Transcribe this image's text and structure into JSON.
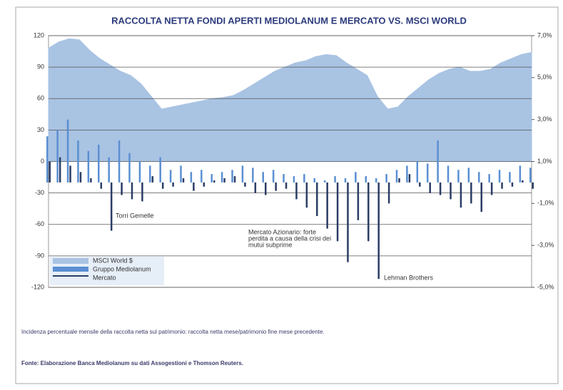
{
  "chart_data": {
    "type": "area-bar",
    "title": "RACCOLTA NETTA FONDI APERTI MEDIOLANUM E MERCATO VS. MSCI WORLD",
    "ylim": [
      -120,
      120
    ],
    "yticks": [
      -120,
      -90,
      -60,
      -30,
      0,
      30,
      60,
      90,
      120
    ],
    "y2lim": [
      -5,
      7
    ],
    "y2ticks": [
      {
        "value": -5,
        "label": "-5,0%"
      },
      {
        "value": -3,
        "label": "-3,0%"
      },
      {
        "value": -1,
        "label": "-1,0%"
      },
      {
        "value": 1,
        "label": "1,0%"
      },
      {
        "value": 3,
        "label": "3,0%"
      },
      {
        "value": 5,
        "label": "5,0%"
      },
      {
        "value": 7,
        "label": "7,0%"
      }
    ],
    "grid": true,
    "series": [
      {
        "name": "MSCI World $",
        "color": "#a9c3e3",
        "kind": "area",
        "values": [
          108,
          114,
          117,
          116,
          106,
          98,
          92,
          86,
          82,
          74,
          62,
          50,
          52,
          54,
          56,
          58,
          60,
          61,
          63,
          68,
          74,
          80,
          86,
          90,
          94,
          96,
          100,
          102,
          101,
          94,
          88,
          82,
          62,
          50,
          52,
          62,
          70,
          78,
          84,
          88,
          90,
          86,
          86,
          88,
          94,
          98,
          102,
          104
        ]
      },
      {
        "name": "Gruppo Mediolanum",
        "color": "#5a8fd2",
        "kind": "bar",
        "axis": "y2",
        "values": [
          2.2,
          2.5,
          3.0,
          2.0,
          1.5,
          1.8,
          1.2,
          2.0,
          1.4,
          1.0,
          0.8,
          1.2,
          0.6,
          0.8,
          0.5,
          0.6,
          0.4,
          0.5,
          0.6,
          0.8,
          0.7,
          0.5,
          0.6,
          0.4,
          0.3,
          0.4,
          0.2,
          0.1,
          0.3,
          0.2,
          0.5,
          0.3,
          0.2,
          0.4,
          0.6,
          0.8,
          1.0,
          0.9,
          2.0,
          0.8,
          0.6,
          0.7,
          0.5,
          0.4,
          0.6,
          0.5,
          0.8,
          0.7
        ]
      },
      {
        "name": "Mercato",
        "color": "#2b3d66",
        "kind": "bar",
        "axis": "y2",
        "values": [
          1.0,
          1.2,
          0.8,
          0.5,
          0.2,
          -0.3,
          -2.3,
          -0.6,
          -0.8,
          -0.9,
          0.3,
          -0.3,
          -0.2,
          0.2,
          -0.4,
          -0.2,
          0.1,
          0.2,
          0.3,
          -0.2,
          -0.5,
          -0.6,
          -0.4,
          -0.3,
          -0.8,
          -1.2,
          -1.6,
          -2.2,
          -2.8,
          -3.8,
          -1.8,
          -2.8,
          -4.6,
          -1.0,
          0.2,
          0.4,
          -0.2,
          -0.5,
          -0.6,
          -0.8,
          -1.2,
          -1.0,
          -1.4,
          -0.6,
          -0.3,
          -0.2,
          0.1,
          -0.3
        ]
      }
    ],
    "annotations": [
      "Torri Gemelle",
      "Mercato Azionario: forte",
      "perdita a causa della crisi dei",
      "mutui subprime",
      "Lehman Brothers"
    ],
    "notes": [
      "Incidenza percentuale mensile della raccolta netta sul patrimonio: raccolta netta mese/patrimonio fine mese precedente.",
      "Fonte: Elaborazione Banca Mediolanum su dati Assogestioni e Thomson Reuters."
    ]
  }
}
